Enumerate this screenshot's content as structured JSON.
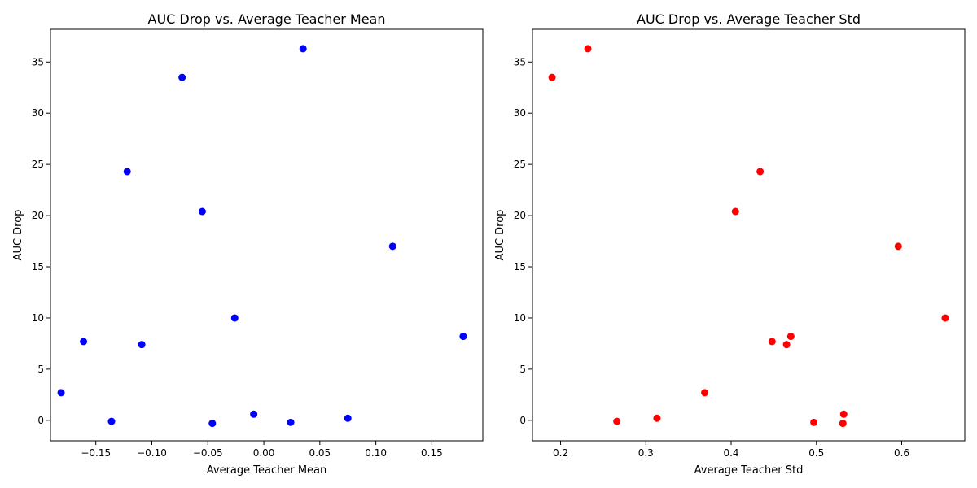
{
  "chart_data": [
    {
      "type": "scatter",
      "title": "AUC Drop vs. Average Teacher Mean",
      "xlabel": "Average Teacher Mean",
      "ylabel": "AUC Drop",
      "xlim": [
        -0.1905,
        0.1955
      ],
      "ylim": [
        -2.0,
        38.2
      ],
      "xticks": [
        -0.15,
        -0.1,
        -0.05,
        0.0,
        0.05,
        0.1,
        0.15
      ],
      "xtick_labels": [
        "−0.15",
        "−0.10",
        "−0.05",
        "0.00",
        "0.05",
        "0.10",
        "0.15"
      ],
      "yticks": [
        0,
        5,
        10,
        15,
        20,
        25,
        30,
        35
      ],
      "ytick_labels": [
        "0",
        "5",
        "10",
        "15",
        "20",
        "25",
        "30",
        "35"
      ],
      "color": "#0000ff",
      "points": [
        {
          "x": 0.035,
          "y": 36.3
        },
        {
          "x": -0.073,
          "y": 33.5
        },
        {
          "x": -0.122,
          "y": 24.3
        },
        {
          "x": -0.055,
          "y": 20.4
        },
        {
          "x": 0.115,
          "y": 17.0
        },
        {
          "x": -0.026,
          "y": 10.0
        },
        {
          "x": 0.178,
          "y": 8.2
        },
        {
          "x": -0.161,
          "y": 7.7
        },
        {
          "x": -0.109,
          "y": 7.4
        },
        {
          "x": -0.181,
          "y": 2.7
        },
        {
          "x": -0.009,
          "y": 0.6
        },
        {
          "x": 0.075,
          "y": 0.2
        },
        {
          "x": -0.136,
          "y": -0.1
        },
        {
          "x": 0.024,
          "y": -0.2
        },
        {
          "x": -0.046,
          "y": -0.3
        }
      ]
    },
    {
      "type": "scatter",
      "title": "AUC Drop vs. Average Teacher Std",
      "xlabel": "Average Teacher Std",
      "ylabel": "AUC Drop",
      "xlim": [
        0.167,
        0.674
      ],
      "ylim": [
        -2.0,
        38.2
      ],
      "xticks": [
        0.2,
        0.3,
        0.4,
        0.5,
        0.6
      ],
      "xtick_labels": [
        "0.2",
        "0.3",
        "0.4",
        "0.5",
        "0.6"
      ],
      "yticks": [
        0,
        5,
        10,
        15,
        20,
        25,
        30,
        35
      ],
      "ytick_labels": [
        "0",
        "5",
        "10",
        "15",
        "20",
        "25",
        "30",
        "35"
      ],
      "color": "#ff0000",
      "points": [
        {
          "x": 0.232,
          "y": 36.3
        },
        {
          "x": 0.19,
          "y": 33.5
        },
        {
          "x": 0.434,
          "y": 24.3
        },
        {
          "x": 0.405,
          "y": 20.4
        },
        {
          "x": 0.596,
          "y": 17.0
        },
        {
          "x": 0.651,
          "y": 10.0
        },
        {
          "x": 0.47,
          "y": 8.2
        },
        {
          "x": 0.448,
          "y": 7.7
        },
        {
          "x": 0.465,
          "y": 7.4
        },
        {
          "x": 0.369,
          "y": 2.7
        },
        {
          "x": 0.532,
          "y": 0.6
        },
        {
          "x": 0.313,
          "y": 0.2
        },
        {
          "x": 0.266,
          "y": -0.1
        },
        {
          "x": 0.497,
          "y": -0.2
        },
        {
          "x": 0.531,
          "y": -0.3
        }
      ]
    }
  ]
}
